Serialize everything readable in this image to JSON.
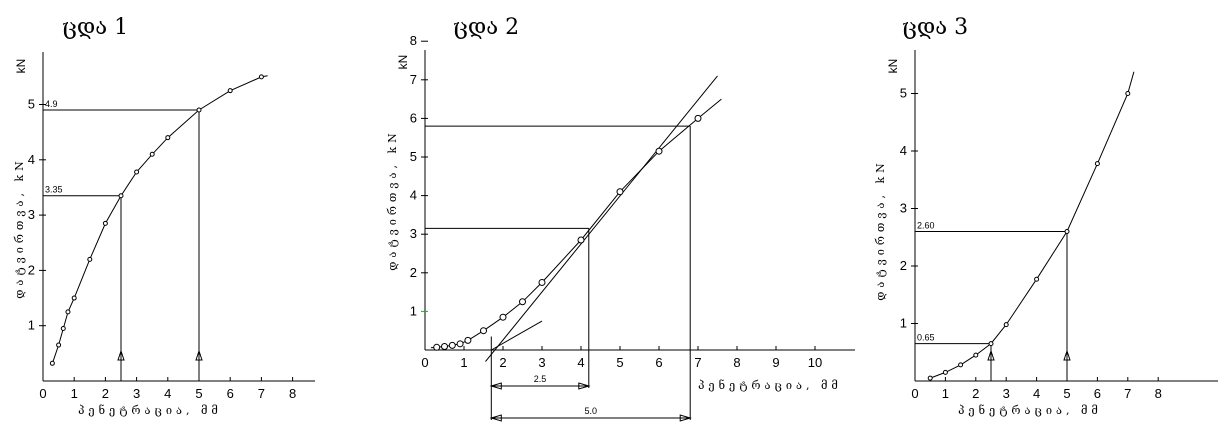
{
  "chart_data": [
    {
      "type": "line",
      "title": "ცდა 1",
      "xlabel": "პენეტრაცია, მმ",
      "ylabel": "დატვირთვა, kN",
      "xlim": [
        0,
        9
      ],
      "ylim": [
        0,
        6
      ],
      "x_ticks": [
        "0",
        "1",
        "2",
        "3",
        "4",
        "5",
        "6",
        "7",
        "8"
      ],
      "y_ticks": [
        "1",
        "2",
        "3",
        "4",
        "5"
      ],
      "series": [
        {
          "x": [
            0.3,
            0.5,
            0.65,
            0.8,
            1.0,
            1.5,
            2.0,
            2.5,
            3.0,
            3.5,
            4.0,
            5.0,
            6.0,
            7.0
          ],
          "y": [
            0.32,
            0.65,
            0.95,
            1.25,
            1.5,
            2.2,
            2.85,
            3.35,
            3.78,
            4.1,
            4.4,
            4.9,
            5.25,
            5.5
          ]
        }
      ],
      "annotations": [
        {
          "x": 2.5,
          "y": 3.35,
          "label": "3.35"
        },
        {
          "x": 5.0,
          "y": 4.9,
          "label": "4.9"
        }
      ]
    },
    {
      "type": "line",
      "title": "ცდა 2",
      "xlabel": "პენეტრაცია, მმ",
      "ylabel": "დატვირთვა, kN",
      "xlim": [
        0,
        11.5
      ],
      "ylim": [
        0,
        8.5
      ],
      "x_ticks": [
        "0",
        "1",
        "2",
        "3",
        "4",
        "5",
        "6",
        "7",
        "8",
        "9",
        "10"
      ],
      "y_ticks": [
        "1",
        "2",
        "3",
        "4",
        "5",
        "6",
        "7",
        "8"
      ],
      "series": [
        {
          "x": [
            0.3,
            0.5,
            0.7,
            0.9,
            1.1,
            1.5,
            2.0,
            2.5,
            3.0,
            4.0,
            5.0,
            6.0,
            7.0
          ],
          "y": [
            0.07,
            0.09,
            0.12,
            0.16,
            0.25,
            0.5,
            0.85,
            1.25,
            1.75,
            2.85,
            4.1,
            5.15,
            6.0
          ]
        }
      ],
      "annotations": [
        {
          "label": "2.5"
        },
        {
          "label": "5.0"
        }
      ]
    },
    {
      "type": "line",
      "title": "ცდა 3",
      "xlabel": "პენეტრაცია, მმ",
      "ylabel": "დატვირთვა, kN",
      "xlim": [
        0,
        9
      ],
      "ylim": [
        0,
        6
      ],
      "x_ticks": [
        "0",
        "1",
        "2",
        "3",
        "4",
        "5",
        "6",
        "7",
        "8"
      ],
      "y_ticks": [
        "1",
        "2",
        "3",
        "4",
        "5"
      ],
      "series": [
        {
          "x": [
            0.5,
            1.0,
            1.5,
            2.0,
            2.5,
            3.0,
            4.0,
            5.0,
            6.0,
            7.0
          ],
          "y": [
            0.05,
            0.15,
            0.28,
            0.45,
            0.65,
            0.98,
            1.77,
            2.6,
            3.78,
            5.0
          ]
        }
      ],
      "annotations": [
        {
          "x": 2.5,
          "y": 0.65,
          "label": "0.65"
        },
        {
          "x": 5.0,
          "y": 2.6,
          "label": "2.60"
        }
      ]
    }
  ]
}
